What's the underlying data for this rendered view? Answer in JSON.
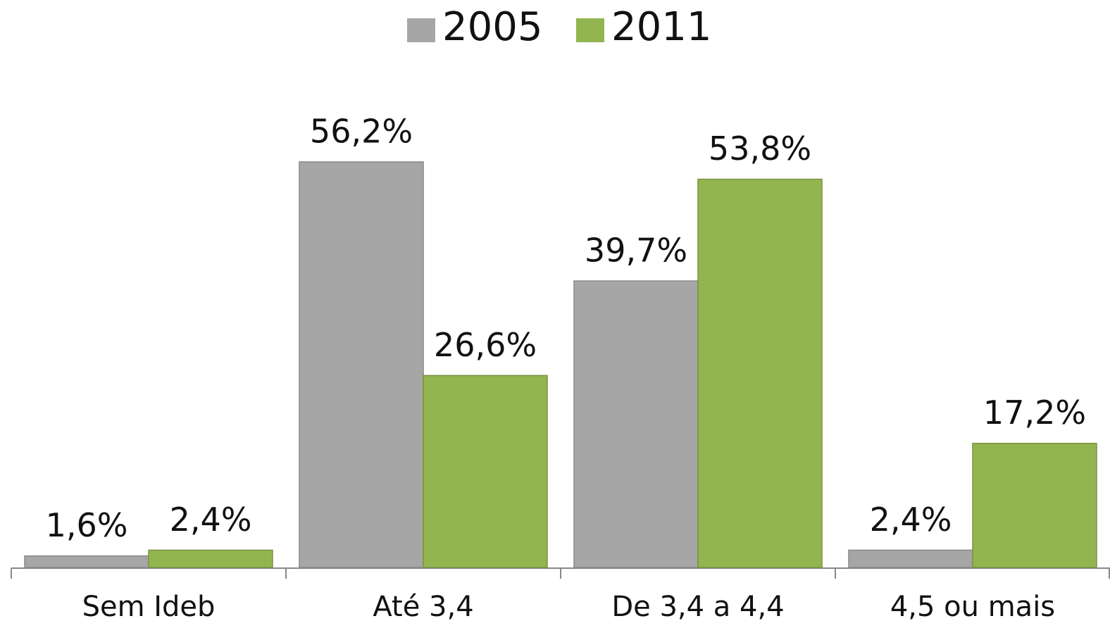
{
  "chart_data": {
    "type": "bar",
    "categories": [
      "Sem Ideb",
      "Até 3,4",
      "De 3,4 a 4,4",
      "4,5 ou mais"
    ],
    "series": [
      {
        "name": "2005",
        "color": "#a6a6a6",
        "values": [
          1.6,
          56.2,
          39.7,
          2.4
        ],
        "value_labels": [
          "1,6%",
          "56,2%",
          "39,7%",
          "2,4%"
        ]
      },
      {
        "name": "2011",
        "color": "#93b550",
        "values": [
          2.4,
          26.6,
          53.8,
          17.2
        ],
        "value_labels": [
          "2,4%",
          "26,6%",
          "53,8%",
          "17,2%"
        ]
      }
    ],
    "ylim": [
      0,
      70
    ],
    "legend": "top"
  }
}
